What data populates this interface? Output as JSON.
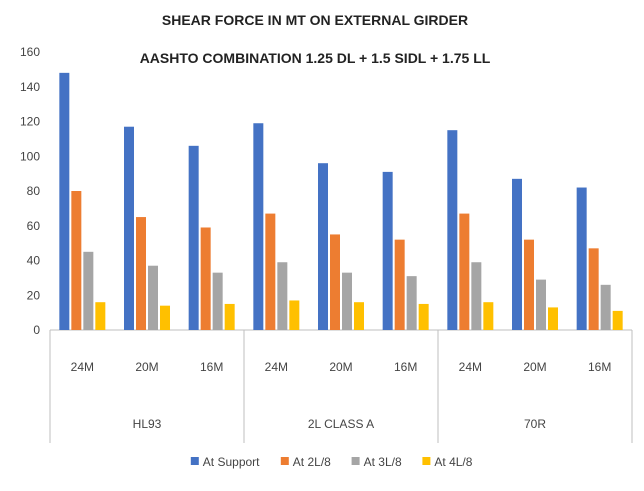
{
  "chart_data": {
    "type": "bar",
    "title": "SHEAR FORCE IN MT ON EXTERNAL GIRDER",
    "subtitle": "AASHTO COMBINATION 1.25 DL + 1.5 SIDL + 1.75 LL",
    "ylim": [
      0,
      160
    ],
    "yticks": [
      0,
      20,
      40,
      60,
      80,
      100,
      120,
      140,
      160
    ],
    "groups": [
      {
        "label": "HL93",
        "categories": [
          "24M",
          "20M",
          "16M"
        ]
      },
      {
        "label": "2L CLASS A",
        "categories": [
          "24M",
          "20M",
          "16M"
        ]
      },
      {
        "label": "70R",
        "categories": [
          "24M",
          "20M",
          "16M"
        ]
      }
    ],
    "series": [
      {
        "name": "At Support",
        "color": "#4472C4",
        "values": [
          148,
          117,
          106,
          119,
          96,
          91,
          115,
          87,
          82
        ]
      },
      {
        "name": "At 2L/8",
        "color": "#ED7D31",
        "values": [
          80,
          65,
          59,
          67,
          55,
          52,
          67,
          52,
          47
        ]
      },
      {
        "name": "At 3L/8",
        "color": "#A5A5A5",
        "values": [
          45,
          37,
          33,
          39,
          33,
          31,
          39,
          29,
          26
        ]
      },
      {
        "name": "At 4L/8",
        "color": "#FFC000",
        "values": [
          16,
          14,
          15,
          17,
          16,
          15,
          16,
          13,
          11
        ]
      }
    ],
    "legend_position": "bottom",
    "grid": false
  }
}
